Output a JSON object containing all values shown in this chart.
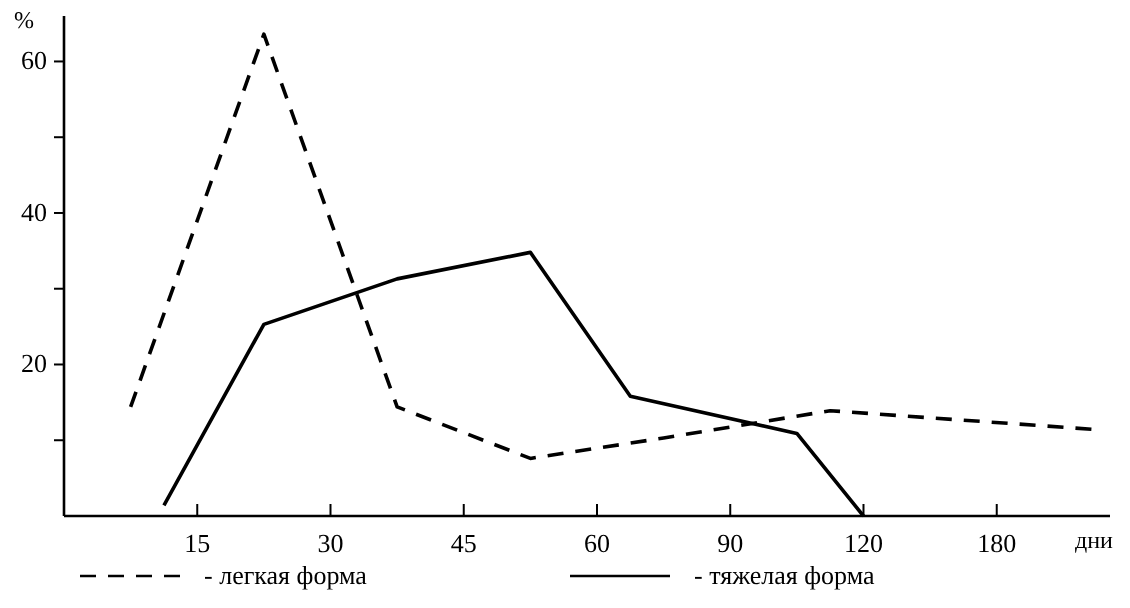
{
  "chart_data": {
    "type": "line",
    "xlabel": "дни",
    "ylabel": "%",
    "categories": [
      null,
      null,
      null,
      "15",
      null,
      null,
      null,
      "30",
      null,
      null,
      null,
      "45",
      null,
      null,
      null,
      "60",
      null,
      null,
      null,
      "90",
      null,
      null,
      null,
      "120",
      null,
      null,
      null,
      "180",
      null,
      null,
      null
    ],
    "ylim": [
      0,
      66
    ],
    "yticks": [
      {
        "value": 10,
        "label": null
      },
      20,
      {
        "value": 30,
        "label": null
      },
      40,
      {
        "value": 50,
        "label": null
      },
      60
    ],
    "grid": false,
    "legend": "bottom",
    "marker": "none",
    "series": [
      {
        "name": "- легкая форма",
        "color": "#000000",
        "line_style": "dashed",
        "values": [
          null,
          14.4,
          null,
          null,
          null,
          63.6,
          null,
          null,
          null,
          14.4,
          null,
          null,
          null,
          7.6,
          null,
          null,
          null,
          10.3,
          null,
          null,
          null,
          null,
          13.9,
          null,
          null,
          null,
          null,
          null,
          null,
          null,
          11.4
        ]
      },
      {
        "name": "- тяжелая форма",
        "color": "#000000",
        "line_style": "solid",
        "values": [
          null,
          null,
          1.4,
          null,
          null,
          25.3,
          null,
          null,
          null,
          31.3,
          null,
          null,
          null,
          34.8,
          null,
          null,
          15.8,
          null,
          null,
          null,
          null,
          10.9,
          null,
          0,
          null,
          null,
          null,
          null,
          null,
          null,
          null
        ]
      }
    ]
  }
}
